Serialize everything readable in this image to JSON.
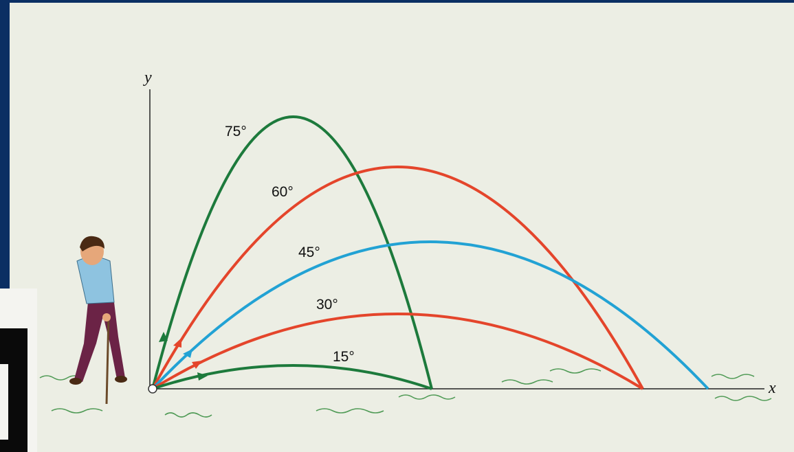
{
  "axes": {
    "x": "x",
    "y": "y"
  },
  "trajectories": [
    {
      "label": "75°"
    },
    {
      "label": "60°"
    },
    {
      "label": "45°"
    },
    {
      "label": "30°"
    },
    {
      "label": "15°"
    }
  ]
}
